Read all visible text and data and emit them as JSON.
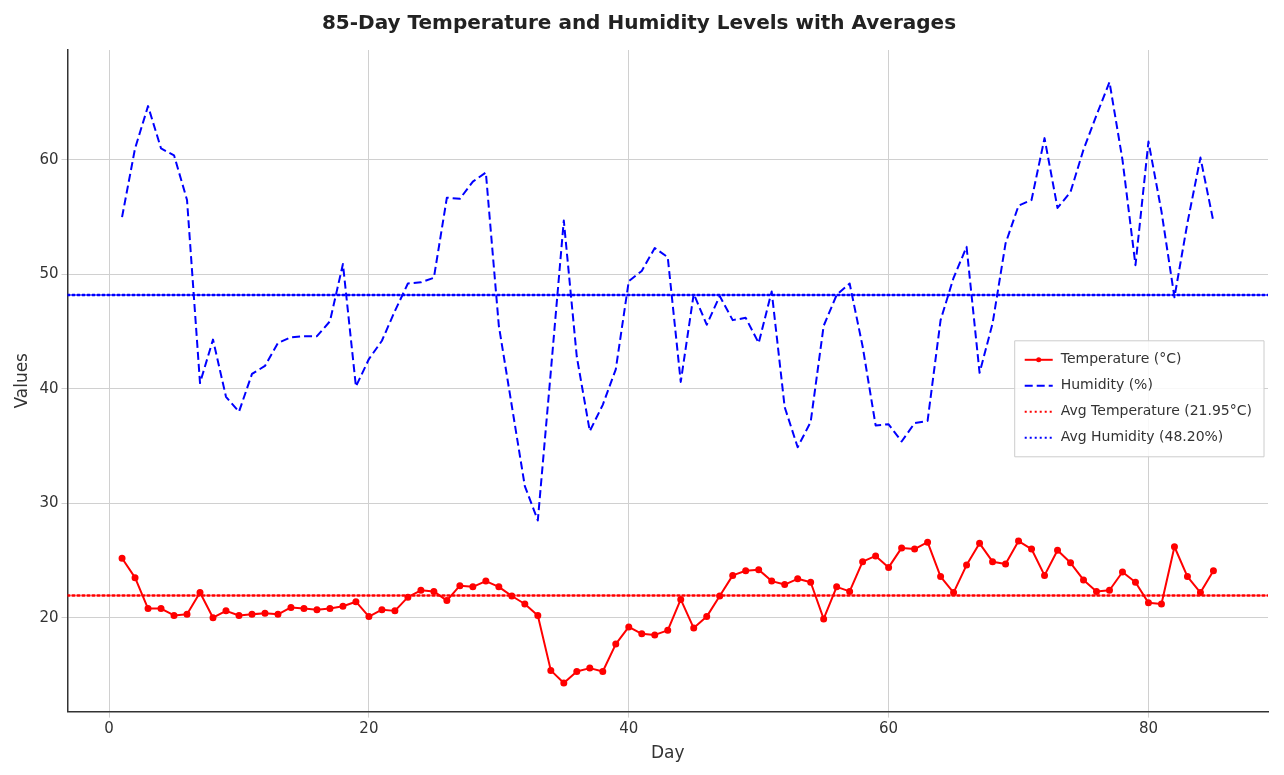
{
  "chart_data": {
    "type": "line",
    "title": "85-Day Temperature and Humidity Levels with Averages",
    "xlabel": "Day",
    "ylabel": "Values",
    "x": [
      1,
      2,
      3,
      4,
      5,
      6,
      7,
      8,
      9,
      10,
      11,
      12,
      13,
      14,
      15,
      16,
      17,
      18,
      19,
      20,
      21,
      22,
      23,
      24,
      25,
      26,
      27,
      28,
      29,
      30,
      31,
      32,
      33,
      34,
      35,
      36,
      37,
      38,
      39,
      40,
      41,
      42,
      43,
      44,
      45,
      46,
      47,
      48,
      49,
      50,
      51,
      52,
      53,
      54,
      55,
      56,
      57,
      58,
      59,
      60,
      61,
      62,
      63,
      64,
      65,
      66,
      67,
      68,
      69,
      70,
      71,
      72,
      73,
      74,
      75,
      76,
      77,
      78,
      79,
      80,
      81,
      82,
      83,
      84,
      85
    ],
    "series": [
      {
        "name": "Temperature (°C)",
        "color": "#ff0000",
        "marker": "circle",
        "line_style": "solid",
        "values": [
          25.2,
          23.5,
          20.8,
          20.8,
          20.2,
          20.3,
          22.2,
          20.0,
          20.6,
          20.2,
          20.3,
          20.4,
          20.3,
          20.9,
          20.8,
          20.7,
          20.8,
          21.0,
          21.4,
          20.1,
          20.7,
          20.6,
          21.8,
          22.4,
          22.3,
          21.5,
          22.8,
          22.7,
          23.2,
          22.7,
          21.9,
          21.2,
          20.2,
          15.4,
          14.3,
          15.3,
          15.6,
          15.3,
          17.7,
          19.2,
          18.6,
          18.5,
          18.9,
          21.6,
          19.1,
          20.1,
          21.9,
          23.7,
          24.1,
          24.2,
          23.2,
          22.9,
          23.4,
          23.1,
          19.9,
          22.7,
          22.3,
          24.9,
          25.4,
          24.4,
          26.1,
          26.0,
          26.6,
          23.6,
          22.2,
          24.6,
          26.5,
          24.9,
          24.7,
          26.7,
          26.0,
          23.7,
          25.9,
          24.8,
          23.3,
          22.3,
          22.4,
          24.0,
          23.1,
          21.3,
          21.2,
          26.2,
          23.6,
          22.2,
          24.1
        ]
      },
      {
        "name": "Humidity (%)",
        "color": "#0000ff",
        "marker": "none",
        "line_style": "dashed",
        "values": [
          55,
          61,
          64.7,
          61,
          60.4,
          56.5,
          40.5,
          44.3,
          39.3,
          38.0,
          41.3,
          42.0,
          44.0,
          44.5,
          44.6,
          44.6,
          45.9,
          50.9,
          40.2,
          42.6,
          44.2,
          46.8,
          49.2,
          49.3,
          49.7,
          56.7,
          56.6,
          58.1,
          58.9,
          45.5,
          38.5,
          31.5,
          28.5,
          41.5,
          54.7,
          42.8,
          36.3,
          38.6,
          41.7,
          49.4,
          50.3,
          52.3,
          51.5,
          40.6,
          48.3,
          45.6,
          48.1,
          46.0,
          46.2,
          44.0,
          48.5,
          38.4,
          34.9,
          37.1,
          45.5,
          48.2,
          49.2,
          43.7,
          36.8,
          36.9,
          35.4,
          37.0,
          37.2,
          46.0,
          49.7,
          52.4,
          41.4,
          45.7,
          52.7,
          56.0,
          56.5,
          61.9,
          55.8,
          57.2,
          60.9,
          63.9,
          66.8,
          60.0,
          50.8,
          61.6,
          55.5,
          48.0,
          54.5,
          60.2,
          54.6
        ]
      }
    ],
    "ref_lines": [
      {
        "axis": "y",
        "value": 21.95,
        "label": "Avg Temperature (21.95°C)",
        "color": "#ff0000",
        "line_style": "dotted"
      },
      {
        "axis": "y",
        "value": 48.2,
        "label": "Avg Humidity (48.20%)",
        "color": "#0000ff",
        "line_style": "dotted"
      }
    ],
    "xlim": [
      -3.2,
      89.2
    ],
    "ylim": [
      11.8,
      69.6
    ],
    "xticks": [
      0,
      20,
      40,
      60,
      80
    ],
    "yticks": [
      20,
      30,
      40,
      50,
      60
    ],
    "grid": true,
    "legend": "center right"
  }
}
